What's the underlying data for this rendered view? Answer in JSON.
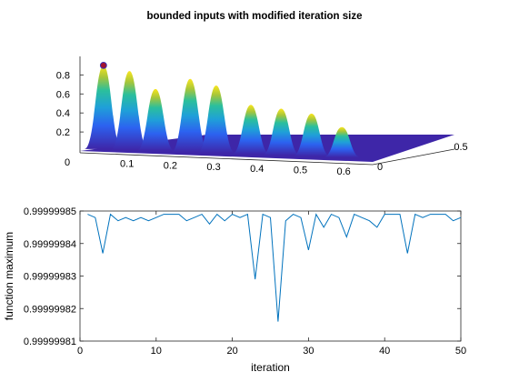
{
  "title": "bounded inputs with modified iteration size",
  "colors": {
    "line": "#0072BD",
    "marker_fill": "#A2142F",
    "marker_edge": "#3b2fb0",
    "axis": "#262626",
    "surface_low": "#3e26a8",
    "surface_mid": "#1fa0d8",
    "surface_high": "#f9e51e"
  },
  "chart_data": [
    {
      "type": "surface",
      "title": "bounded inputs with modified iteration size",
      "colormap": "parula",
      "xticks": [
        "0",
        "0.1",
        "0.2",
        "0.3",
        "0.4",
        "0.5",
        "0.6"
      ],
      "yticks": [
        "0",
        "0.5"
      ],
      "zticks": [
        "0.2",
        "0.4",
        "0.6",
        "0.8"
      ],
      "xlim": [
        0,
        0.65
      ],
      "ylim": [
        0,
        0.5
      ],
      "zlim": [
        0,
        0.9
      ],
      "peaks": [
        {
          "x": 0.05,
          "z": 0.88
        },
        {
          "x": 0.11,
          "z": 0.83
        },
        {
          "x": 0.17,
          "z": 0.65
        },
        {
          "x": 0.25,
          "z": 0.77
        },
        {
          "x": 0.31,
          "z": 0.71
        },
        {
          "x": 0.39,
          "z": 0.52
        },
        {
          "x": 0.46,
          "z": 0.49
        },
        {
          "x": 0.53,
          "z": 0.45
        },
        {
          "x": 0.6,
          "z": 0.32
        }
      ],
      "max_point": {
        "x": 0.05,
        "z": 0.88
      }
    },
    {
      "type": "line",
      "xlabel": "iteration",
      "ylabel": "function maximum",
      "xlim": [
        0,
        50
      ],
      "ylim": [
        0.99999981,
        0.99999985
      ],
      "xticks": [
        "0",
        "10",
        "20",
        "30",
        "40",
        "50"
      ],
      "yticks": [
        "0.99999981",
        "0.99999982",
        "0.99999983",
        "0.99999984",
        "0.99999985"
      ],
      "grid": false,
      "x": [
        1,
        2,
        3,
        4,
        5,
        6,
        7,
        8,
        9,
        10,
        11,
        12,
        13,
        14,
        15,
        16,
        17,
        18,
        19,
        20,
        21,
        22,
        23,
        24,
        25,
        26,
        27,
        28,
        29,
        30,
        31,
        32,
        33,
        34,
        35,
        36,
        37,
        38,
        39,
        40,
        41,
        42,
        43,
        44,
        45,
        46,
        47,
        48,
        49,
        50
      ],
      "y": [
        0.999999849,
        0.999999848,
        0.999999837,
        0.999999849,
        0.999999847,
        0.999999848,
        0.999999847,
        0.999999848,
        0.999999847,
        0.999999848,
        0.999999849,
        0.999999849,
        0.999999849,
        0.999999847,
        0.999999848,
        0.999999849,
        0.999999846,
        0.999999849,
        0.999999847,
        0.999999849,
        0.999999848,
        0.999999849,
        0.999999829,
        0.999999849,
        0.999999848,
        0.999999816,
        0.999999847,
        0.999999849,
        0.999999848,
        0.999999838,
        0.999999849,
        0.999999845,
        0.999999849,
        0.999999848,
        0.999999842,
        0.999999849,
        0.999999848,
        0.999999847,
        0.999999845,
        0.999999849,
        0.999999849,
        0.999999849,
        0.999999837,
        0.999999849,
        0.999999848,
        0.999999849,
        0.999999849,
        0.999999849,
        0.999999847,
        0.999999848
      ]
    }
  ]
}
